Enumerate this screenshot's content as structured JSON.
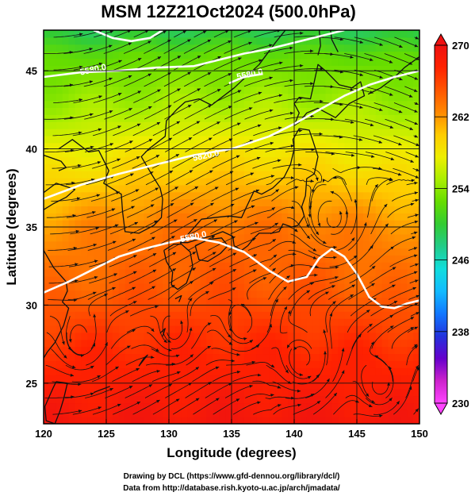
{
  "chart_data": {
    "type": "heatmap",
    "title": "MSM 12Z21Oct2024 (500.0hPa)",
    "xlabel": "Longitude (degrees)",
    "ylabel": "Latitude  (degrees)",
    "xlim": [
      120,
      150
    ],
    "ylim": [
      22.4,
      47.6
    ],
    "x_ticks": [
      120,
      125,
      130,
      135,
      140,
      145,
      150
    ],
    "y_ticks": [
      25,
      30,
      35,
      40,
      45
    ],
    "x_tick_labels": [
      "120",
      "125",
      "130",
      "135",
      "140",
      "145",
      "150"
    ],
    "y_tick_labels": [
      "25",
      "30",
      "35",
      "40",
      "45"
    ],
    "grid": true,
    "colorbar": {
      "range": [
        230,
        270
      ],
      "ticks": [
        230,
        238,
        246,
        254,
        262,
        270
      ],
      "tick_labels": [
        "230",
        "238",
        "246",
        "254",
        "262",
        "270"
      ],
      "extend": "both",
      "colors": [
        "#ff44ff",
        "#cc22cc",
        "#6600cc",
        "#2233dd",
        "#1177ff",
        "#11bbff",
        "#11dddd",
        "#22cc88",
        "#33cc33",
        "#66dd00",
        "#aaee00",
        "#eeee00",
        "#ffcc00",
        "#ff8800",
        "#ff5500",
        "#ff2200",
        "#ee1111"
      ]
    },
    "field_anchors": [
      {
        "lat": 22.4,
        "value": 269
      },
      {
        "lat": 27,
        "value": 267
      },
      {
        "lat": 31,
        "value": 264
      },
      {
        "lat": 35,
        "value": 262
      },
      {
        "lat": 38,
        "value": 259
      },
      {
        "lat": 42,
        "value": 255
      },
      {
        "lat": 46,
        "value": 252
      },
      {
        "lat": 47.6,
        "value": 249
      }
    ],
    "contours": [
      {
        "label": "5580.0",
        "label_at": [
          132,
          34.2
        ],
        "points": [
          [
            120,
            30.8
          ],
          [
            122,
            31.5
          ],
          [
            124,
            32.3
          ],
          [
            126,
            33.1
          ],
          [
            128,
            33.6
          ],
          [
            130,
            34.0
          ],
          [
            132,
            34.3
          ],
          [
            134,
            34.0
          ],
          [
            136,
            33.4
          ],
          [
            138,
            32.2
          ],
          [
            139.5,
            31.5
          ],
          [
            141,
            31.8
          ],
          [
            142,
            33.0
          ],
          [
            143,
            33.6
          ],
          [
            144,
            33.1
          ],
          [
            145,
            32.0
          ],
          [
            146,
            30.5
          ],
          [
            147,
            29.9
          ],
          [
            148,
            29.8
          ],
          [
            149,
            30.1
          ],
          [
            150,
            30.3
          ]
        ]
      },
      {
        "label": "5820.0",
        "label_at": [
          133,
          39.4
        ],
        "points": [
          [
            120,
            36.8
          ],
          [
            123,
            37.7
          ],
          [
            126,
            38.4
          ],
          [
            129,
            39.0
          ],
          [
            132,
            39.6
          ],
          [
            135,
            40.0
          ],
          [
            138,
            40.8
          ],
          [
            140,
            41.6
          ],
          [
            142,
            42.5
          ],
          [
            144,
            43.4
          ],
          [
            146,
            44.1
          ],
          [
            148,
            44.6
          ],
          [
            150,
            45.0
          ]
        ]
      },
      {
        "label": "5580.0",
        "label_at": [
          124,
          44.9
        ],
        "points": [
          [
            120,
            44.6
          ],
          [
            123,
            44.9
          ],
          [
            126,
            45.0
          ],
          [
            129,
            45.2
          ],
          [
            132,
            45.3
          ],
          [
            134,
            45.7
          ],
          [
            136,
            46.1
          ],
          [
            138,
            46.4
          ],
          [
            140,
            46.8
          ],
          [
            142,
            47.2
          ],
          [
            144,
            47.6
          ]
        ]
      },
      {
        "label": "5580.0",
        "label_at": [
          136.5,
          44.6
        ],
        "points": [
          [
            134.8,
            44.2
          ],
          [
            136,
            44.6
          ],
          [
            137.5,
            44.8
          ]
        ]
      },
      {
        "label": "",
        "label_at": null,
        "points": [
          [
            124,
            47.6
          ],
          [
            125.5,
            47.1
          ],
          [
            127,
            46.9
          ],
          [
            128.5,
            47.1
          ],
          [
            129.5,
            47.6
          ]
        ]
      }
    ],
    "vortices": [
      {
        "lon": 143.3,
        "lat": 35.0,
        "radius": 1.8
      },
      {
        "lon": 141.0,
        "lat": 26.2,
        "radius": 1.6
      },
      {
        "lon": 136.0,
        "lat": 28.4,
        "radius": 1.2
      },
      {
        "lon": 147.0,
        "lat": 24.6,
        "radius": 1.3
      },
      {
        "lon": 130.5,
        "lat": 28.0,
        "radius": 1.1
      },
      {
        "lon": 123.0,
        "lat": 27.5,
        "radius": 1.2
      }
    ],
    "flow": {
      "description_free": true,
      "westerly_u_north": 1.0,
      "westerly_u_south": 0.35
    }
  },
  "credits": {
    "line1": "Drawing by DCL (https://www.gfd-dennou.org/library/dcl/)",
    "line2": "Data from http://database.rish.kyoto-u.ac.jp/arch/jmadata/"
  },
  "colors": {
    "contour": "#ffffff",
    "coast": "#111111",
    "grid": "#111111",
    "streamline": "#111111"
  }
}
